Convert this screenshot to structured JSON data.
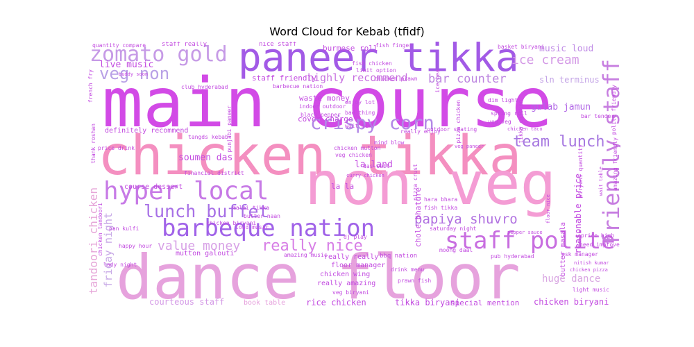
{
  "title": "Word Cloud for Kebab (tfidf)",
  "chart_data": {
    "type": "wordcloud",
    "title": "Word Cloud for Kebab (tfidf)",
    "words": [
      {
        "text": "main course",
        "color": "#d24ae6"
      },
      {
        "text": "chicken tikka",
        "color": "#f48fc0"
      },
      {
        "text": "dance floor",
        "color": "#e6a2dd"
      },
      {
        "text": "non veg",
        "color": "#f49cd4"
      },
      {
        "text": "paneer tikka",
        "color": "#a25ae6"
      },
      {
        "text": "hyper local",
        "color": "#c77ae6"
      },
      {
        "text": "barbeque nation",
        "color": "#a062e8"
      },
      {
        "text": "staff polite",
        "color": "#c86ee0"
      },
      {
        "text": "friendly staff",
        "color": "#c77ee0"
      },
      {
        "text": "zomato gold",
        "color": "#c69ae6"
      },
      {
        "text": "crispy corn",
        "color": "#b388e6"
      },
      {
        "text": "lunch buffet",
        "color": "#a770e6"
      },
      {
        "text": "really nice",
        "color": "#d77ee6"
      },
      {
        "text": "veg non",
        "color": "#b8a0e6"
      },
      {
        "text": "team lunch",
        "color": "#a778e0"
      },
      {
        "text": "papiya shuvro",
        "color": "#b070e0"
      },
      {
        "text": "value money",
        "color": "#d7a0e6"
      },
      {
        "text": "ice cream",
        "color": "#d49ae6"
      },
      {
        "text": "bar counter",
        "color": "#bd86e0"
      },
      {
        "text": "highly recommend",
        "color": "#c770e0"
      },
      {
        "text": "tandoori chicken",
        "color": "#e6a6d8"
      },
      {
        "text": "friday night",
        "color": "#c7a8e6"
      },
      {
        "text": "huge dance",
        "color": "#d9a6e2"
      },
      {
        "text": "music loud",
        "color": "#c08ce6"
      },
      {
        "text": "live music",
        "color": "#c24ae0"
      },
      {
        "text": "gulab jamun",
        "color": "#b268e6"
      },
      {
        "text": "sln terminus",
        "color": "#c3a3e6"
      },
      {
        "text": "staff friendly",
        "color": "#c24ae0"
      },
      {
        "text": "burmese roll",
        "color": "#c24ae0"
      },
      {
        "text": "la land",
        "color": "#c24ae0"
      },
      {
        "text": "la la",
        "color": "#c24ae0"
      },
      {
        "text": "reasonable price",
        "color": "#c24ae0"
      },
      {
        "text": "soumen das",
        "color": "#c24ae0"
      },
      {
        "text": "courteous staff",
        "color": "#d49ae6"
      },
      {
        "text": "book table",
        "color": "#e6a2dd"
      },
      {
        "text": "rice chicken",
        "color": "#c24ae0"
      },
      {
        "text": "tikka biryani",
        "color": "#c24ae0"
      },
      {
        "text": "special mention",
        "color": "#c24ae0"
      },
      {
        "text": "chicken biryani",
        "color": "#c24ae0"
      },
      {
        "text": "course dessert",
        "color": "#c24ae0"
      },
      {
        "text": "definitely recommend",
        "color": "#c24ae0"
      },
      {
        "text": "waste money",
        "color": "#c24ae0"
      },
      {
        "text": "cover charge",
        "color": "#c24ae0"
      },
      {
        "text": "chicken wing",
        "color": "#c24ae0"
      },
      {
        "text": "really amazing",
        "color": "#c24ae0"
      },
      {
        "text": "floor manager",
        "color": "#c24ae0"
      },
      {
        "text": "really really",
        "color": "#c24ae0"
      },
      {
        "text": "mutton galouti",
        "color": "#c24ae0"
      },
      {
        "text": "chole bhature",
        "color": "#c24ae0"
      },
      {
        "text": "butter masala",
        "color": "#c24ae0"
      },
      {
        "text": "quantity compare",
        "color": "#c24ae0"
      },
      {
        "text": "staff really",
        "color": "#c24ae0"
      },
      {
        "text": "nice staff",
        "color": "#c24ae0"
      },
      {
        "text": "fish finger",
        "color": "#c24ae0"
      },
      {
        "text": "fish chicken",
        "color": "#c24ae0"
      },
      {
        "text": "limit option",
        "color": "#c24ae0"
      },
      {
        "text": "basket biryani",
        "color": "#c24ae0"
      },
      {
        "text": "buddy soon",
        "color": "#c24ae0"
      },
      {
        "text": "club hyderabad",
        "color": "#c24ae0"
      },
      {
        "text": "barbecue nation",
        "color": "#c24ae0"
      },
      {
        "text": "indoor outdoor",
        "color": "#c24ae0"
      },
      {
        "text": "black pepper",
        "color": "#c24ae0"
      },
      {
        "text": "wait min",
        "color": "#c24ae0"
      },
      {
        "text": "enjoy lot",
        "color": "#c24ae0"
      },
      {
        "text": "bad thing",
        "color": "#c24ae0"
      },
      {
        "text": "chicken prawn",
        "color": "#c24ae0"
      },
      {
        "text": "dim light",
        "color": "#c24ae0"
      },
      {
        "text": "spring roll",
        "color": "#c24ae0"
      },
      {
        "text": "veg veg",
        "color": "#c24ae0"
      },
      {
        "text": "tikka chicken",
        "color": "#c24ae0"
      },
      {
        "text": "bar tender",
        "color": "#c24ae0"
      },
      {
        "text": "polite friendly",
        "color": "#c24ae0"
      },
      {
        "text": "tangds kebab",
        "color": "#c24ae0"
      },
      {
        "text": "financial district",
        "color": "#c24ae0"
      },
      {
        "text": "outdoor seating",
        "color": "#c24ae0"
      },
      {
        "text": "really enjoy",
        "color": "#c24ae0"
      },
      {
        "text": "chicken taco",
        "color": "#c24ae0"
      },
      {
        "text": "mind blow",
        "color": "#c24ae0"
      },
      {
        "text": "veg chicken",
        "color": "#c24ae0"
      },
      {
        "text": "das wait",
        "color": "#c24ae0"
      },
      {
        "text": "curry chicken",
        "color": "#c24ae0"
      },
      {
        "text": "pizza crust",
        "color": "#c24ae0"
      },
      {
        "text": "veg paneer",
        "color": "#c24ae0"
      },
      {
        "text": "floor nice",
        "color": "#c24ae0"
      },
      {
        "text": "wait table",
        "color": "#c24ae0"
      },
      {
        "text": "biryani quantity",
        "color": "#c24ae0"
      },
      {
        "text": "amazing friendly",
        "color": "#c24ae0"
      },
      {
        "text": "chicken biryani",
        "color": "#c24ae0"
      },
      {
        "text": "malai tikka",
        "color": "#c24ae0"
      },
      {
        "text": "butter naan",
        "color": "#c24ae0"
      },
      {
        "text": "hara bhara",
        "color": "#c24ae0"
      },
      {
        "text": "fish tikka",
        "color": "#c24ae0"
      },
      {
        "text": "saturday night",
        "color": "#c24ae0"
      },
      {
        "text": "pan kulfi",
        "color": "#c24ae0"
      },
      {
        "text": "happy hour",
        "color": "#c24ae0"
      },
      {
        "text": "lady night",
        "color": "#c24ae0"
      },
      {
        "text": "loud music",
        "color": "#c24ae0"
      },
      {
        "text": "dj play",
        "color": "#c24ae0"
      },
      {
        "text": "bbq nation",
        "color": "#c24ae0"
      },
      {
        "text": "amazing music",
        "color": "#c24ae0"
      },
      {
        "text": "moong daal",
        "color": "#c24ae0"
      },
      {
        "text": "pub hyderabad",
        "color": "#c24ae0"
      },
      {
        "text": "pepper sauce",
        "color": "#c24ae0"
      },
      {
        "text": "price high",
        "color": "#c24ae0"
      },
      {
        "text": "need improve",
        "color": "#c24ae0"
      },
      {
        "text": "ask manager",
        "color": "#c24ae0"
      },
      {
        "text": "nitish kumar",
        "color": "#c24ae0"
      },
      {
        "text": "chicken pizza",
        "color": "#c24ae0"
      },
      {
        "text": "light music",
        "color": "#c24ae0"
      },
      {
        "text": "drink menu",
        "color": "#c24ae0"
      },
      {
        "text": "prawn fish",
        "color": "#c24ae0"
      },
      {
        "text": "veg biryani",
        "color": "#c24ae0"
      },
      {
        "text": "thank roshan",
        "color": "#c24ae0"
      },
      {
        "text": "price drink",
        "color": "#c24ae0"
      },
      {
        "text": "french fry",
        "color": "#c24ae0"
      },
      {
        "text": "punjabi paneer",
        "color": "#c24ae0"
      },
      {
        "text": "chicken tandoori",
        "color": "#c24ae0"
      },
      {
        "text": "ice tea",
        "color": "#c24ae0"
      },
      {
        "text": "pizza chicken",
        "color": "#c24ae0"
      },
      {
        "text": "chicken mutton",
        "color": "#c24ae0"
      }
    ]
  }
}
